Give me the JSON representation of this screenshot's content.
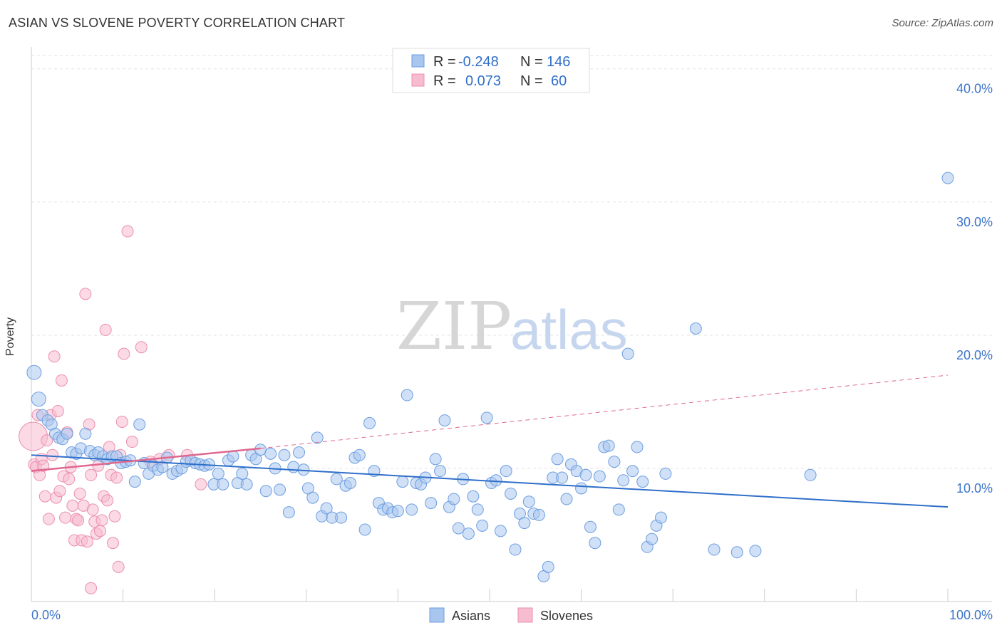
{
  "title": "ASIAN VS SLOVENE POVERTY CORRELATION CHART",
  "source": "Source: ZipAtlas.com",
  "watermark": {
    "zip": "ZIP",
    "atlas": "atlas"
  },
  "colors": {
    "asians_fill": "#a9c6ef",
    "asians_stroke": "#6d9ee0",
    "asians_line": "#2f6fc9",
    "slovenes_fill": "#f7bcd0",
    "slovenes_stroke": "#eb8fae",
    "slovenes_line": "#e0688f",
    "tick": "#3d74c9"
  },
  "stats": {
    "r_label": "R =",
    "n_label": "N =",
    "asians": {
      "r": "-0.248",
      "n": "146"
    },
    "slovenes": {
      "r": "0.073",
      "n": "60"
    }
  },
  "chart_data": {
    "type": "scatter",
    "title": "ASIAN VS SLOVENE POVERTY CORRELATION CHART",
    "xlabel": "",
    "ylabel": "Poverty",
    "xlim": [
      0,
      100
    ],
    "ylim": [
      0,
      41
    ],
    "y_ticks": [
      {
        "value": 10,
        "label": "10.0%"
      },
      {
        "value": 20,
        "label": "20.0%"
      },
      {
        "value": 30,
        "label": "30.0%"
      },
      {
        "value": 40,
        "label": "40.0%"
      }
    ],
    "x_tick_labels": {
      "min": "0.0%",
      "max": "100.0%"
    },
    "x_minor_ticks": [
      0,
      10,
      20,
      30,
      40,
      50,
      60,
      70,
      80,
      90,
      100
    ],
    "grid": true,
    "legend": "bottom-center",
    "series": [
      {
        "name": "Asians",
        "trend": {
          "x0": 0,
          "y0": 11.0,
          "x1": 100,
          "y1": 7.1,
          "dashed": false
        },
        "points": [
          [
            0.3,
            17.2
          ],
          [
            0.8,
            15.2
          ],
          [
            1.2,
            14.0
          ],
          [
            1.8,
            13.6
          ],
          [
            2.2,
            13.3
          ],
          [
            2.6,
            12.6
          ],
          [
            3.0,
            12.3
          ],
          [
            3.4,
            12.2
          ],
          [
            3.9,
            12.6
          ],
          [
            4.4,
            11.2
          ],
          [
            4.9,
            11.1
          ],
          [
            5.4,
            11.5
          ],
          [
            5.9,
            12.6
          ],
          [
            6.4,
            11.3
          ],
          [
            6.9,
            11.0
          ],
          [
            7.3,
            11.2
          ],
          [
            7.8,
            10.9
          ],
          [
            8.3,
            10.7
          ],
          [
            8.8,
            10.9
          ],
          [
            9.3,
            10.9
          ],
          [
            9.8,
            10.4
          ],
          [
            10.3,
            10.5
          ],
          [
            10.8,
            10.6
          ],
          [
            11.3,
            9.0
          ],
          [
            11.8,
            13.3
          ],
          [
            12.3,
            10.4
          ],
          [
            12.8,
            9.6
          ],
          [
            13.3,
            10.2
          ],
          [
            13.8,
            9.9
          ],
          [
            14.3,
            10.1
          ],
          [
            14.8,
            10.8
          ],
          [
            15.4,
            9.6
          ],
          [
            15.9,
            9.8
          ],
          [
            16.4,
            10.0
          ],
          [
            16.9,
            10.5
          ],
          [
            17.4,
            10.6
          ],
          [
            17.9,
            10.4
          ],
          [
            18.4,
            10.3
          ],
          [
            18.9,
            10.2
          ],
          [
            19.4,
            10.3
          ],
          [
            19.9,
            8.8
          ],
          [
            20.4,
            9.6
          ],
          [
            20.9,
            8.8
          ],
          [
            21.5,
            10.6
          ],
          [
            22.0,
            10.9
          ],
          [
            22.5,
            8.9
          ],
          [
            23.0,
            9.6
          ],
          [
            23.5,
            8.8
          ],
          [
            24.0,
            11.0
          ],
          [
            24.5,
            10.7
          ],
          [
            25.0,
            11.4
          ],
          [
            25.6,
            8.3
          ],
          [
            26.1,
            11.1
          ],
          [
            26.6,
            10.0
          ],
          [
            27.1,
            8.4
          ],
          [
            27.6,
            11.0
          ],
          [
            28.1,
            6.7
          ],
          [
            28.6,
            10.1
          ],
          [
            29.2,
            11.2
          ],
          [
            29.7,
            9.9
          ],
          [
            30.2,
            8.5
          ],
          [
            30.7,
            7.8
          ],
          [
            31.2,
            12.3
          ],
          [
            31.7,
            6.4
          ],
          [
            32.2,
            7.0
          ],
          [
            32.8,
            6.3
          ],
          [
            33.3,
            9.2
          ],
          [
            33.8,
            6.3
          ],
          [
            34.3,
            8.7
          ],
          [
            34.8,
            8.9
          ],
          [
            35.3,
            10.8
          ],
          [
            35.8,
            11.0
          ],
          [
            36.4,
            5.4
          ],
          [
            36.9,
            13.4
          ],
          [
            37.4,
            9.8
          ],
          [
            37.9,
            7.4
          ],
          [
            38.4,
            6.9
          ],
          [
            38.9,
            7.0
          ],
          [
            39.4,
            6.7
          ],
          [
            40.0,
            6.8
          ],
          [
            40.5,
            9.0
          ],
          [
            41.0,
            15.5
          ],
          [
            41.5,
            6.9
          ],
          [
            42.0,
            8.9
          ],
          [
            42.5,
            8.8
          ],
          [
            43.0,
            9.3
          ],
          [
            43.6,
            7.4
          ],
          [
            44.1,
            10.7
          ],
          [
            44.6,
            9.8
          ],
          [
            45.1,
            13.6
          ],
          [
            45.6,
            7.1
          ],
          [
            46.1,
            7.7
          ],
          [
            46.6,
            5.5
          ],
          [
            47.1,
            9.2
          ],
          [
            47.7,
            5.1
          ],
          [
            48.2,
            7.9
          ],
          [
            48.7,
            6.9
          ],
          [
            49.2,
            5.7
          ],
          [
            49.7,
            13.8
          ],
          [
            50.2,
            8.9
          ],
          [
            50.7,
            9.1
          ],
          [
            51.2,
            5.3
          ],
          [
            51.8,
            9.8
          ],
          [
            52.3,
            8.1
          ],
          [
            52.8,
            3.9
          ],
          [
            53.3,
            6.6
          ],
          [
            53.8,
            5.9
          ],
          [
            54.3,
            7.5
          ],
          [
            54.8,
            6.6
          ],
          [
            55.4,
            6.5
          ],
          [
            55.9,
            1.9
          ],
          [
            56.4,
            2.6
          ],
          [
            56.9,
            9.3
          ],
          [
            57.4,
            10.7
          ],
          [
            57.9,
            9.3
          ],
          [
            58.4,
            7.7
          ],
          [
            58.9,
            10.3
          ],
          [
            59.5,
            9.8
          ],
          [
            60.0,
            8.5
          ],
          [
            60.5,
            9.5
          ],
          [
            61.0,
            5.6
          ],
          [
            61.5,
            4.4
          ],
          [
            62.0,
            9.4
          ],
          [
            62.5,
            11.6
          ],
          [
            63.0,
            11.7
          ],
          [
            63.6,
            10.5
          ],
          [
            64.1,
            6.9
          ],
          [
            64.6,
            9.1
          ],
          [
            65.1,
            18.6
          ],
          [
            65.6,
            9.8
          ],
          [
            66.1,
            11.6
          ],
          [
            66.7,
            9.0
          ],
          [
            67.2,
            4.1
          ],
          [
            67.7,
            4.7
          ],
          [
            68.2,
            5.7
          ],
          [
            68.7,
            6.3
          ],
          [
            69.2,
            9.6
          ],
          [
            72.5,
            20.5
          ],
          [
            74.5,
            3.9
          ],
          [
            77.0,
            3.7
          ],
          [
            79.0,
            3.8
          ],
          [
            85.0,
            9.5
          ],
          [
            100.0,
            31.8
          ]
        ]
      },
      {
        "name": "Slovenes",
        "trend": {
          "x0": 0,
          "y0": 9.8,
          "x1": 25,
          "y1": 11.5,
          "dashed_to_x": 100,
          "dashed_to_y": 17.0
        },
        "points": [
          [
            0.2,
            12.4
          ],
          [
            0.3,
            10.3
          ],
          [
            0.5,
            10.1
          ],
          [
            0.7,
            14.0
          ],
          [
            0.9,
            9.5
          ],
          [
            1.1,
            10.7
          ],
          [
            1.3,
            10.2
          ],
          [
            1.5,
            7.9
          ],
          [
            1.7,
            12.1
          ],
          [
            1.9,
            6.2
          ],
          [
            2.1,
            14.0
          ],
          [
            2.3,
            11.0
          ],
          [
            2.5,
            18.4
          ],
          [
            2.7,
            7.8
          ],
          [
            2.9,
            14.3
          ],
          [
            3.1,
            8.3
          ],
          [
            3.3,
            16.6
          ],
          [
            3.5,
            9.4
          ],
          [
            3.7,
            6.3
          ],
          [
            3.9,
            12.7
          ],
          [
            4.1,
            9.2
          ],
          [
            4.3,
            10.1
          ],
          [
            4.5,
            7.2
          ],
          [
            4.7,
            4.6
          ],
          [
            4.9,
            6.2
          ],
          [
            5.1,
            6.1
          ],
          [
            5.3,
            8.1
          ],
          [
            5.5,
            4.6
          ],
          [
            5.7,
            7.2
          ],
          [
            5.9,
            23.1
          ],
          [
            6.1,
            4.5
          ],
          [
            6.3,
            13.3
          ],
          [
            6.5,
            9.5
          ],
          [
            6.7,
            6.9
          ],
          [
            6.9,
            6.0
          ],
          [
            7.1,
            5.1
          ],
          [
            7.3,
            10.2
          ],
          [
            7.5,
            5.3
          ],
          [
            7.7,
            6.1
          ],
          [
            7.9,
            7.9
          ],
          [
            8.1,
            20.4
          ],
          [
            8.3,
            7.6
          ],
          [
            8.5,
            11.6
          ],
          [
            8.7,
            9.5
          ],
          [
            8.9,
            4.4
          ],
          [
            9.1,
            6.4
          ],
          [
            9.3,
            9.3
          ],
          [
            9.5,
            2.6
          ],
          [
            9.7,
            11.0
          ],
          [
            9.9,
            13.5
          ],
          [
            10.1,
            18.6
          ],
          [
            10.5,
            27.8
          ],
          [
            11.0,
            12.0
          ],
          [
            12.0,
            19.1
          ],
          [
            13.0,
            10.5
          ],
          [
            14.0,
            10.7
          ],
          [
            15.0,
            11.0
          ],
          [
            17.0,
            11.0
          ],
          [
            18.5,
            8.8
          ],
          [
            6.5,
            1.0
          ]
        ]
      }
    ]
  },
  "legend": {
    "asians_label": "Asians",
    "slovenes_label": "Slovenes"
  }
}
